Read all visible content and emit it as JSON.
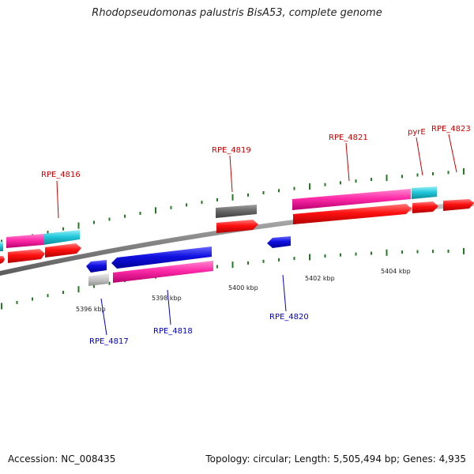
{
  "title": "Rhodopseudomonas palustris BisA53, complete genome",
  "footer": {
    "accession": "Accession: NC_008435",
    "stats": "Topology: circular; Length: 5,505,494 bp; Genes: 4,935"
  },
  "ticks": {
    "k5396": "5396 kbp",
    "k5398": "5398 kbp",
    "k5400": "5400 kbp",
    "k5402": "5402 kbp",
    "k5404": "5404 kbp"
  },
  "genes": {
    "rpe4816": "RPE_4816",
    "rpe4817": "RPE_4817",
    "rpe4818": "RPE_4818",
    "rpe4819": "RPE_4819",
    "rpe4820": "RPE_4820",
    "rpe4821": "RPE_4821",
    "pyrE": "pyrE",
    "rpe4823": "RPE_4823"
  },
  "colors": {
    "backbone": "#8a8a8a",
    "cds": "#ff1010",
    "gene_magenta": "#ff2aa8",
    "gene_cyan": "#22c8dc",
    "gene_blue": "#1010e0",
    "gene_gray": "#6a6a6a",
    "gene_lightgray": "#c8c8c8",
    "tick_green": "#227a22",
    "label_red": "#cc0000",
    "label_blue": "#0000cc"
  }
}
